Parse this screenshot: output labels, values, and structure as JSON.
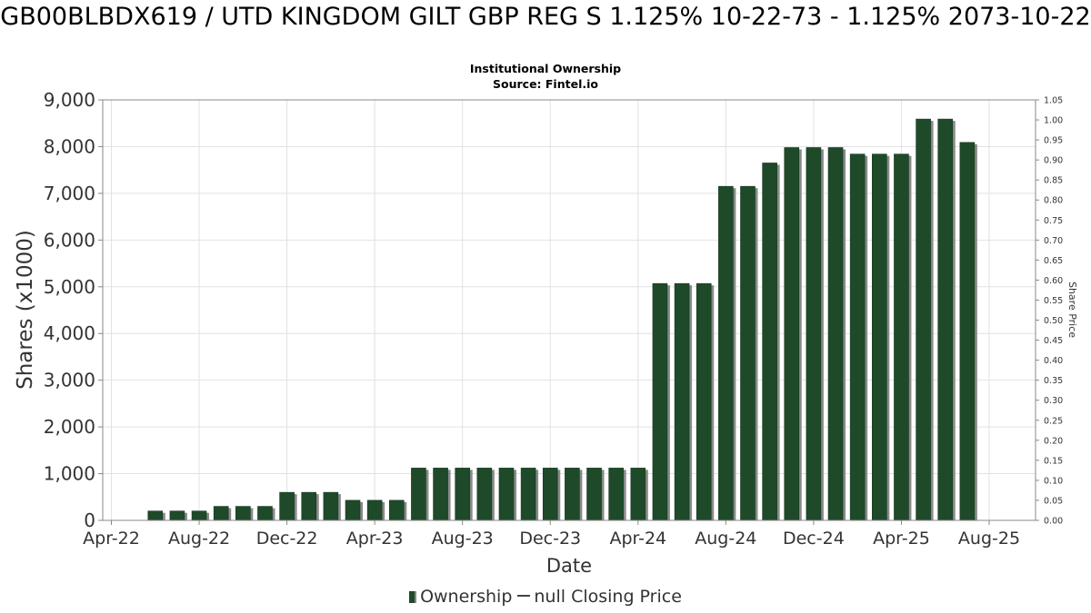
{
  "chart_data": {
    "type": "bar",
    "title": "GB00BLBDX619 / UTD KINGDOM GILT GBP REG S 1.125% 10-22-73 - 1.125% 2073-10-22",
    "subtitle": "Institutional Ownership",
    "source": "Source: Fintel.io",
    "xlabel": "Date",
    "ylabel": "Shares (x1000)",
    "y2label": "Share Price",
    "ylim": [
      0,
      9000
    ],
    "y2lim": [
      0,
      1.05
    ],
    "yticks": [
      "0",
      "1,000",
      "2,000",
      "3,000",
      "4,000",
      "5,000",
      "6,000",
      "7,000",
      "8,000",
      "9,000"
    ],
    "y2ticks": [
      "0.00",
      "0.05",
      "0.10",
      "0.15",
      "0.20",
      "0.25",
      "0.30",
      "0.35",
      "0.40",
      "0.45",
      "0.50",
      "0.55",
      "0.60",
      "0.65",
      "0.70",
      "0.75",
      "0.80",
      "0.85",
      "0.90",
      "0.95",
      "1.00",
      "1.05"
    ],
    "xticks": [
      "Apr-22",
      "Aug-22",
      "Dec-22",
      "Apr-23",
      "Aug-23",
      "Dec-23",
      "Apr-24",
      "Aug-24",
      "Dec-24",
      "Apr-25",
      "Aug-25"
    ],
    "series": [
      {
        "name": "Ownership",
        "color": "#1f4a2a",
        "values": [
          200,
          200,
          200,
          300,
          300,
          300,
          600,
          600,
          600,
          430,
          430,
          430,
          1120,
          1120,
          1120,
          1120,
          1120,
          1120,
          1120,
          1120,
          1120,
          1120,
          1120,
          5070,
          5070,
          5070,
          7150,
          7150,
          7650,
          7980,
          7980,
          7980,
          7840,
          7840,
          7840,
          8590,
          8590,
          8090
        ]
      },
      {
        "name": "null Closing Price",
        "color": "#444444",
        "values": []
      }
    ],
    "legend": [
      "Ownership",
      "null Closing Price"
    ]
  }
}
